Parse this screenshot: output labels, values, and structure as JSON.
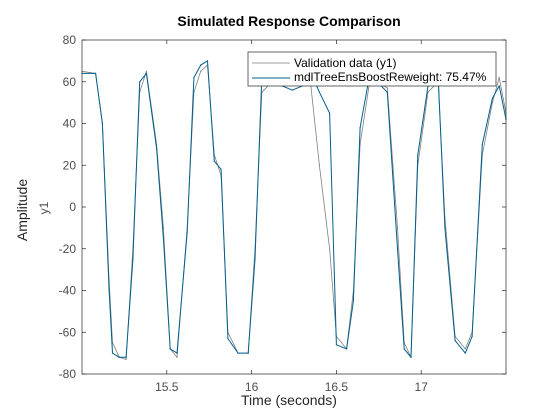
{
  "chart_data": {
    "type": "line",
    "title": "Simulated Response Comparison",
    "xlabel": "Time (seconds)",
    "ylabel": "Amplitude",
    "ylabel_sub": "y1",
    "xlim": [
      15.0,
      17.5
    ],
    "ylim": [
      -80,
      80
    ],
    "xticks": [
      15.5,
      16,
      16.5,
      17
    ],
    "xtick_labels": [
      "15.5",
      "16",
      "16.5",
      "17"
    ],
    "yticks": [
      -80,
      -60,
      -40,
      -20,
      0,
      20,
      40,
      60,
      80
    ],
    "ytick_labels": [
      "-80",
      "-60",
      "-40",
      "-20",
      "0",
      "20",
      "40",
      "60",
      "80"
    ],
    "grid": false,
    "legend_position": "top-right",
    "series": [
      {
        "name": "Validation data (y1)",
        "color": "#7f7f7f",
        "x": [
          15.0,
          15.08,
          15.12,
          15.16,
          15.18,
          15.22,
          15.26,
          15.3,
          15.34,
          15.38,
          15.44,
          15.48,
          15.52,
          15.56,
          15.62,
          15.66,
          15.7,
          15.74,
          15.78,
          15.82,
          15.86,
          15.92,
          15.98,
          16.02,
          16.06,
          16.12,
          16.18,
          16.24,
          16.3,
          16.34,
          16.4,
          16.46,
          16.5,
          16.56,
          16.6,
          16.64,
          16.7,
          16.74,
          16.8,
          16.86,
          16.9,
          16.94,
          16.98,
          17.04,
          17.1,
          17.14,
          17.2,
          17.26,
          17.3,
          17.36,
          17.42,
          17.46,
          17.5
        ],
        "y": [
          65,
          64,
          40,
          -35,
          -65,
          -72,
          -73,
          -20,
          55,
          65,
          30,
          -10,
          -68,
          -72,
          -10,
          55,
          65,
          68,
          25,
          15,
          -60,
          -70,
          -70,
          -20,
          55,
          60,
          58,
          60,
          60,
          65,
          20,
          -20,
          -62,
          -68,
          -40,
          30,
          62,
          60,
          57,
          -10,
          -65,
          -72,
          20,
          55,
          60,
          -5,
          -62,
          -68,
          -60,
          25,
          50,
          62,
          45
        ]
      },
      {
        "name": "mdlTreeEnsBoostReweight: 75.47%",
        "color": "#00608a",
        "x": [
          15.0,
          15.08,
          15.12,
          15.16,
          15.18,
          15.22,
          15.26,
          15.3,
          15.34,
          15.38,
          15.44,
          15.48,
          15.52,
          15.56,
          15.62,
          15.66,
          15.7,
          15.74,
          15.78,
          15.82,
          15.86,
          15.92,
          15.98,
          16.02,
          16.06,
          16.12,
          16.18,
          16.24,
          16.3,
          16.34,
          16.4,
          16.46,
          16.5,
          16.56,
          16.6,
          16.64,
          16.7,
          16.74,
          16.8,
          16.86,
          16.9,
          16.94,
          16.98,
          17.04,
          17.1,
          17.14,
          17.2,
          17.26,
          17.3,
          17.36,
          17.42,
          17.46,
          17.5
        ],
        "y": [
          64,
          64,
          40,
          -40,
          -70,
          -72,
          -72,
          -25,
          60,
          64,
          28,
          -15,
          -68,
          -70,
          -12,
          62,
          68,
          70,
          22,
          18,
          -63,
          -70,
          -70,
          -25,
          62,
          62,
          58,
          56,
          58,
          66,
          55,
          45,
          -66,
          -68,
          -45,
          38,
          65,
          60,
          55,
          -20,
          -68,
          -72,
          25,
          58,
          62,
          -10,
          -64,
          -70,
          -62,
          30,
          52,
          58,
          42
        ]
      }
    ]
  }
}
